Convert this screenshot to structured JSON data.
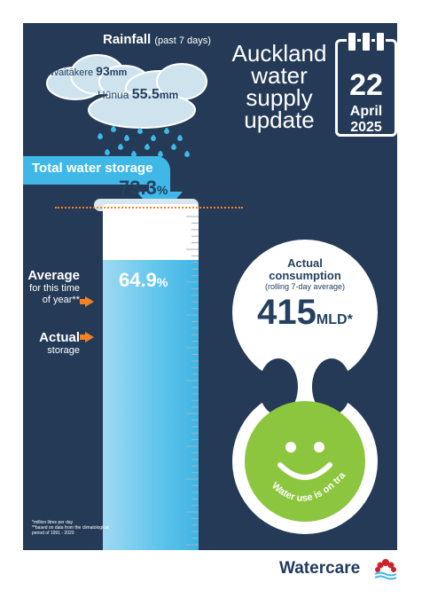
{
  "rainfall": {
    "title": "Rainfall",
    "period": "(past 7 days)",
    "locations": [
      {
        "name": "Waitākere",
        "amount": "93",
        "unit": "mm"
      },
      {
        "name": "Hūnua",
        "amount": "55.5",
        "unit": "mm"
      }
    ]
  },
  "header": {
    "title_lines": [
      "Auckland",
      "water",
      "supply",
      "update"
    ],
    "date": {
      "day": "22",
      "month": "April",
      "year": "2025"
    }
  },
  "storage": {
    "banner": "Total water storage",
    "average": {
      "label": "Average",
      "sublabel_1": "for this time",
      "sublabel_2": "of year**",
      "value": "73.3",
      "unit": "%",
      "level": 0.733
    },
    "actual": {
      "label": "Actual",
      "sublabel": "storage",
      "value": "64.9",
      "unit": "%",
      "level": 0.649
    }
  },
  "consumption": {
    "title_1": "Actual",
    "title_2": "consumption",
    "subtitle": "(rolling 7-day average)",
    "value": "415",
    "unit": "MLD*",
    "status": "Water use is on track"
  },
  "footnotes": {
    "line1": "*million litres per day",
    "line2": "**based on data from the climatological period of 1991 - 2020"
  },
  "brand": {
    "name": "Watercare"
  },
  "colors": {
    "background": "#243a56",
    "accent_orange": "#f58220",
    "water_blue": "#3fb8e8",
    "status_green": "#8cc63f"
  }
}
